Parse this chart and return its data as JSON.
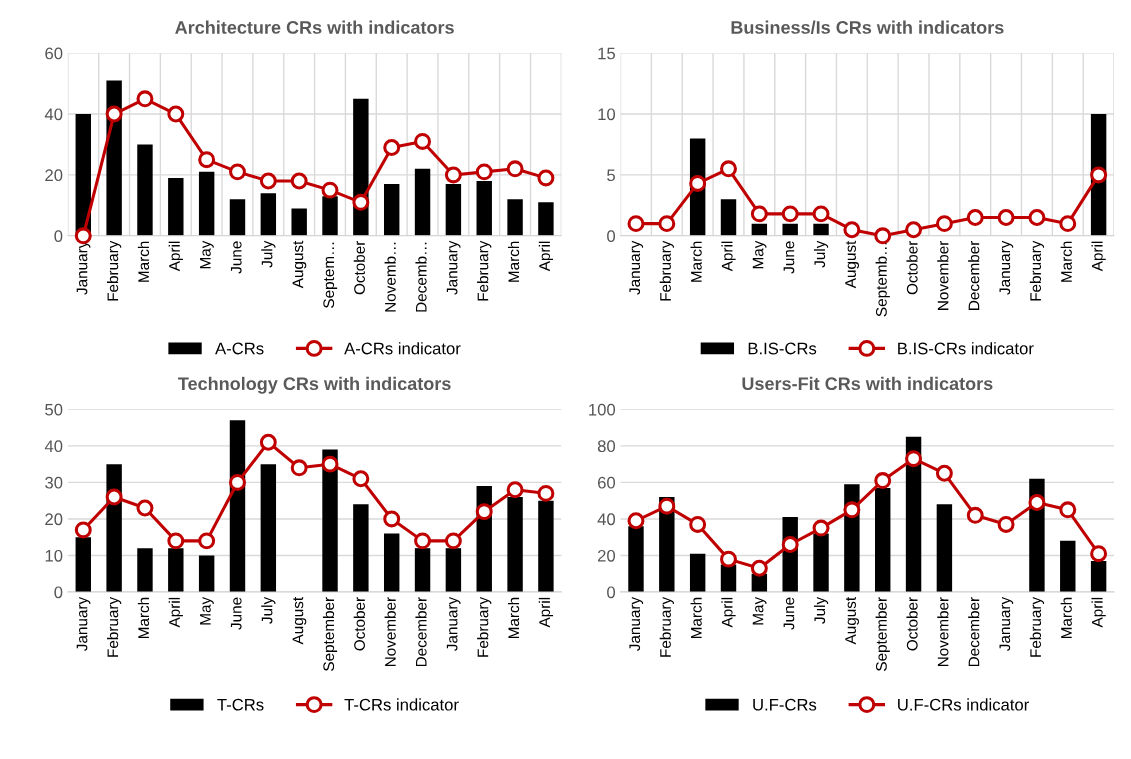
{
  "chart_data": [
    {
      "type": "bar",
      "title": "Architecture CRs with indicators",
      "categories": [
        "January",
        "February",
        "March",
        "April",
        "May",
        "June",
        "July",
        "August",
        "Septem…",
        "October",
        "Novemb…",
        "Decemb…",
        "January",
        "February",
        "March",
        "April"
      ],
      "ylim": [
        0,
        60
      ],
      "yticks": [
        0,
        20,
        40,
        60
      ],
      "grid": true,
      "legend": "bottom",
      "series": [
        {
          "name": "A-CRs",
          "color": "#000000",
          "values": [
            40,
            51,
            30,
            19,
            21,
            12,
            14,
            9,
            13,
            45,
            17,
            22,
            17,
            18,
            12,
            11
          ]
        },
        {
          "name": "A-CRs indicator",
          "type": "line",
          "color": "#c00000",
          "marker": "circle",
          "values": [
            0,
            40,
            45,
            40,
            25,
            21,
            18,
            18,
            15,
            11,
            29,
            31,
            20,
            21,
            22,
            19
          ]
        }
      ]
    },
    {
      "type": "bar",
      "title": "Business/Is CRs with indicators",
      "categories": [
        "January",
        "February",
        "March",
        "April",
        "May",
        "June",
        "July",
        "August",
        "Septemb…",
        "October",
        "November",
        "December",
        "January",
        "February",
        "March",
        "April"
      ],
      "ylim": [
        0,
        15
      ],
      "yticks": [
        0,
        5,
        10,
        15
      ],
      "grid": true,
      "legend": "bottom",
      "series": [
        {
          "name": "B.IS-CRs",
          "color": "#000000",
          "values": [
            0,
            0,
            8,
            3,
            1,
            1,
            1,
            0,
            0,
            0,
            0,
            0,
            0,
            0,
            0,
            10
          ]
        },
        {
          "name": "B.IS-CRs indicator",
          "type": "line",
          "color": "#c00000",
          "marker": "circle",
          "values": [
            1,
            1,
            4.3,
            5.5,
            1.8,
            1.8,
            1.8,
            0.5,
            0,
            0.5,
            1,
            1.5,
            1.5,
            1.5,
            1,
            5
          ]
        }
      ]
    },
    {
      "type": "bar",
      "title": "Technology CRs with indicators",
      "categories": [
        "January",
        "February",
        "March",
        "April",
        "May",
        "June",
        "July",
        "August",
        "September",
        "October",
        "November",
        "December",
        "January",
        "February",
        "March",
        "April"
      ],
      "ylim": [
        0,
        50
      ],
      "yticks": [
        0,
        10,
        20,
        30,
        40,
        50
      ],
      "grid": "y",
      "legend": "bottom",
      "series": [
        {
          "name": "T-CRs",
          "color": "#000000",
          "values": [
            15,
            35,
            12,
            12,
            10,
            47,
            35,
            null,
            39,
            24,
            16,
            12,
            12,
            29,
            26,
            25
          ]
        },
        {
          "name": "T-CRs indicator",
          "type": "line",
          "color": "#c00000",
          "marker": "circle",
          "values": [
            17,
            26,
            23,
            14,
            14,
            30,
            41,
            34,
            35,
            31,
            20,
            14,
            14,
            22,
            28,
            27
          ]
        }
      ]
    },
    {
      "type": "bar",
      "title": "Users-Fit CRs with indicators",
      "categories": [
        "January",
        "February",
        "March",
        "April",
        "May",
        "June",
        "July",
        "August",
        "September",
        "October",
        "November",
        "December",
        "January",
        "February",
        "March",
        "April"
      ],
      "ylim": [
        0,
        100
      ],
      "yticks": [
        0,
        20,
        40,
        60,
        80,
        100
      ],
      "grid": "y",
      "legend": "bottom",
      "series": [
        {
          "name": "U.F-CRs",
          "color": "#000000",
          "values": [
            36,
            52,
            21,
            15,
            10,
            41,
            32,
            59,
            57,
            85,
            48,
            null,
            null,
            62,
            28,
            17
          ]
        },
        {
          "name": "U.F-CRs indicator",
          "type": "line",
          "color": "#c00000",
          "marker": "circle",
          "values": [
            39,
            47,
            37,
            18,
            13,
            26,
            35,
            45,
            61,
            73,
            65,
            42,
            37,
            49,
            45,
            21
          ]
        }
      ]
    }
  ]
}
